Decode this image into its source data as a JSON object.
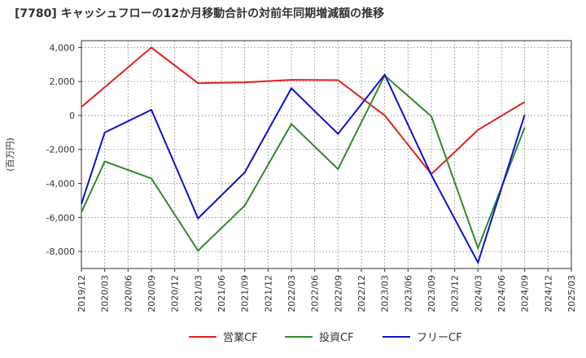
{
  "chart_data": {
    "type": "line",
    "title": "[7780]  キャッシュフローの12か月移動合計の対前年同期増減額の推移",
    "ylabel": "(百万円)",
    "xlabel": "",
    "ylim": [
      -9000,
      4400
    ],
    "y_ticks": [
      4000,
      2000,
      0,
      -2000,
      -4000,
      -6000,
      -8000
    ],
    "y_tick_labels": [
      "4,000",
      "2,000",
      "0",
      "-2,000",
      "-4,000",
      "-6,000",
      "-8,000"
    ],
    "categories": [
      "2019/12",
      "2020/03",
      "2020/06",
      "2020/09",
      "2020/12",
      "2021/03",
      "2021/06",
      "2021/09",
      "2021/12",
      "2022/03",
      "2022/06",
      "2022/09",
      "2022/12",
      "2023/03",
      "2023/06",
      "2023/09",
      "2023/12",
      "2024/03",
      "2024/06",
      "2024/09",
      "2024/12",
      "2025/03"
    ],
    "grid": true,
    "series": [
      {
        "name": "営業CF",
        "color": "#e02020",
        "points": [
          [
            "2019/12",
            500
          ],
          [
            "2020/09",
            4000
          ],
          [
            "2021/03",
            1900
          ],
          [
            "2021/09",
            1950
          ],
          [
            "2022/03",
            2100
          ],
          [
            "2022/09",
            2080
          ],
          [
            "2023/03",
            0
          ],
          [
            "2023/09",
            -3450
          ],
          [
            "2024/03",
            -850
          ],
          [
            "2024/09",
            800
          ]
        ]
      },
      {
        "name": "投資CF",
        "color": "#2e8b2e",
        "points": [
          [
            "2019/12",
            -5700
          ],
          [
            "2020/03",
            -2700
          ],
          [
            "2020/09",
            -3700
          ],
          [
            "2021/03",
            -7950
          ],
          [
            "2021/09",
            -5300
          ],
          [
            "2022/03",
            -500
          ],
          [
            "2022/09",
            -3150
          ],
          [
            "2023/03",
            2350
          ],
          [
            "2023/09",
            -50
          ],
          [
            "2024/03",
            -7800
          ],
          [
            "2024/09",
            -700
          ]
        ]
      },
      {
        "name": "フリーCF",
        "color": "#1010d0",
        "points": [
          [
            "2019/12",
            -5200
          ],
          [
            "2020/03",
            -1000
          ],
          [
            "2020/09",
            330
          ],
          [
            "2021/03",
            -6050
          ],
          [
            "2021/09",
            -3350
          ],
          [
            "2022/03",
            1600
          ],
          [
            "2022/09",
            -1080
          ],
          [
            "2023/03",
            2400
          ],
          [
            "2023/09",
            -3500
          ],
          [
            "2024/03",
            -8650
          ],
          [
            "2024/09",
            50
          ]
        ]
      }
    ],
    "legend_position": "bottom"
  }
}
